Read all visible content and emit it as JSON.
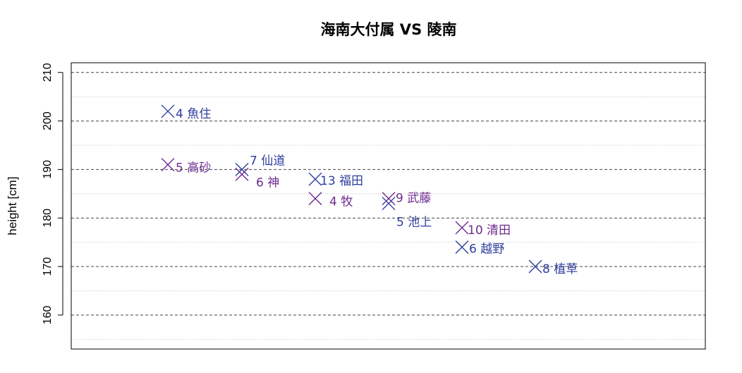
{
  "chart_data": {
    "type": "scatter",
    "title": "海南大付属 VS 陵南",
    "xlabel": "",
    "ylabel": "height [cm]",
    "ylim": [
      153,
      212
    ],
    "yticks": [
      160,
      170,
      180,
      190,
      200,
      210
    ],
    "grid": true,
    "legend": "none",
    "marker": "x",
    "colors": {
      "海南大付属": "#2e3f9c",
      "陵南": "#6e2b8f"
    },
    "points": [
      {
        "team": "海南大付属",
        "number": "4",
        "name": "魚住",
        "label": "4 魚住",
        "x": 1,
        "y": 202
      },
      {
        "team": "陵南",
        "number": "5",
        "name": "高砂",
        "label": "5 高砂",
        "x": 1,
        "y": 191
      },
      {
        "team": "海南大付属",
        "number": "7",
        "name": "仙道",
        "label": "7 仙道",
        "x": 2,
        "y": 190
      },
      {
        "team": "陵南",
        "number": "6",
        "name": "神",
        "label": "6 神",
        "x": 2,
        "y": 189
      },
      {
        "team": "海南大付属",
        "number": "13",
        "name": "福田",
        "label": "13 福田",
        "x": 3,
        "y": 188
      },
      {
        "team": "陵南",
        "number": "4",
        "name": "牧",
        "label": "4 牧",
        "x": 3,
        "y": 184
      },
      {
        "team": "陵南",
        "number": "9",
        "name": "武藤",
        "label": "9 武藤",
        "x": 4,
        "y": 184
      },
      {
        "team": "海南大付属",
        "number": "5",
        "name": "池上",
        "label": "5 池上",
        "x": 4,
        "y": 183
      },
      {
        "team": "陵南",
        "number": "10",
        "name": "清田",
        "label": "10 清田",
        "x": 5,
        "y": 178
      },
      {
        "team": "海南大付属",
        "number": "6",
        "name": "越野",
        "label": "6 越野",
        "x": 5,
        "y": 174
      },
      {
        "team": "海南大付属",
        "number": "8",
        "name": "植草",
        "label": "8 植草",
        "x": 6,
        "y": 170
      }
    ]
  }
}
